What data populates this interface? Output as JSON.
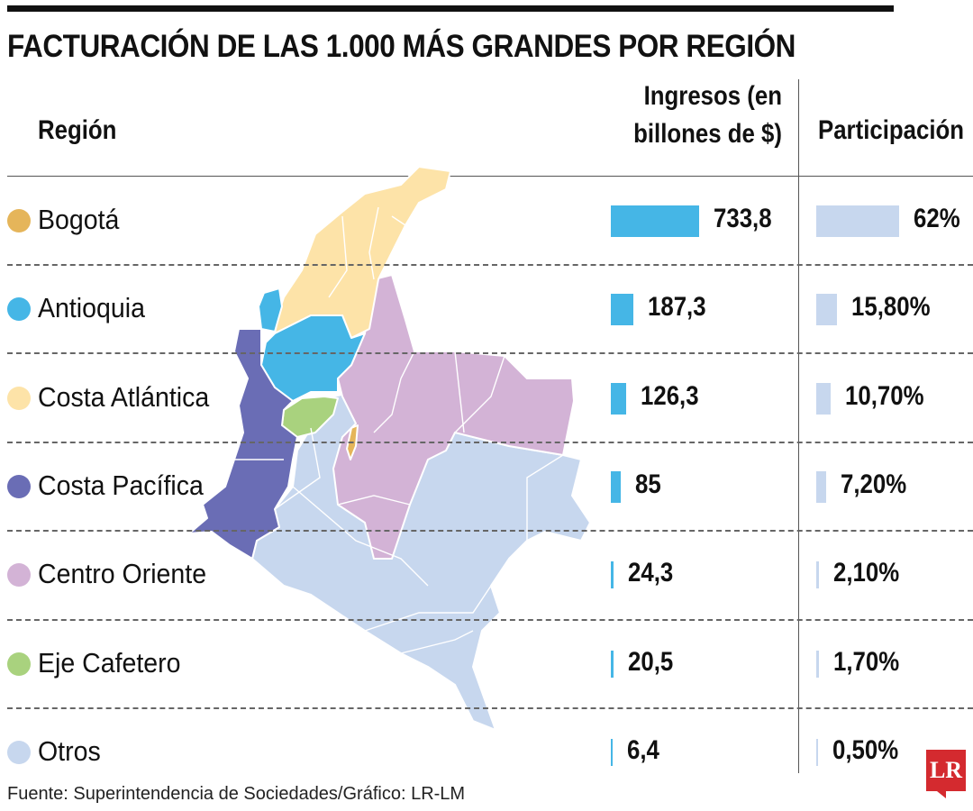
{
  "title": "FACTURACIÓN DE LAS 1.000 MÁS GRANDES POR REGIÓN",
  "headers": {
    "region": "Región",
    "ingresos_line1": "Ingresos (en",
    "ingresos_line2": "billones de $)",
    "participacion": "Participación"
  },
  "source": "Fuente: Superintendencia de Sociedades/Gráfico: LR-LM",
  "logo": "LR",
  "colors": {
    "ingresos_bar": "#45b6e6",
    "participacion_bar": "#c7d7ee"
  },
  "chart_data": {
    "type": "bar",
    "categories": [
      "Bogotá",
      "Antioquia",
      "Costa Atlántica",
      "Costa Pacífica",
      "Centro Oriente",
      "Eje Cafetero",
      "Otros"
    ],
    "region_colors": [
      "#e5b55a",
      "#45b6e6",
      "#fde3a8",
      "#6a6db5",
      "#d3b3d6",
      "#a9d27e",
      "#c7d7ee"
    ],
    "series": [
      {
        "name": "Ingresos (en billones de $)",
        "values": [
          733.8,
          187.3,
          126.3,
          85,
          24.3,
          20.5,
          6.4
        ],
        "labels": [
          "733,8",
          "187,3",
          "126,3",
          "85",
          "24,3",
          "20,5",
          "6,4"
        ]
      },
      {
        "name": "Participación",
        "values": [
          62,
          15.8,
          10.7,
          7.2,
          2.1,
          1.7,
          0.5
        ],
        "labels": [
          "62%",
          "15,80%",
          "10,70%",
          "7,20%",
          "2,10%",
          "1,70%",
          "0,50%"
        ]
      }
    ]
  }
}
